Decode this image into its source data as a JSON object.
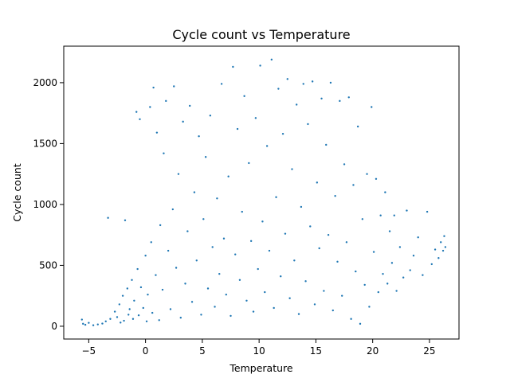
{
  "chart_data": {
    "type": "scatter",
    "title": "Cycle count vs Temperature",
    "xlabel": "Temperature",
    "ylabel": "Cycle count",
    "xlim": [
      -7.2,
      27.6
    ],
    "ylim": [
      -105,
      2300
    ],
    "xticks": [
      -5,
      0,
      5,
      10,
      15,
      20,
      25
    ],
    "yticks": [
      0,
      500,
      1000,
      1500,
      2000
    ],
    "grid": false,
    "series": [
      {
        "color": "#1f77b4",
        "marker_size": 1.2,
        "points": [
          [
            -5.6,
            55
          ],
          [
            -5.5,
            20
          ],
          [
            -5.3,
            12
          ],
          [
            -5.0,
            28
          ],
          [
            -4.6,
            8
          ],
          [
            -4.2,
            15
          ],
          [
            -3.8,
            22
          ],
          [
            -3.5,
            40
          ],
          [
            -3.3,
            890
          ],
          [
            -3.1,
            60
          ],
          [
            -2.7,
            120
          ],
          [
            -2.5,
            75
          ],
          [
            -2.3,
            180
          ],
          [
            -2.2,
            30
          ],
          [
            -2.0,
            250
          ],
          [
            -1.9,
            45
          ],
          [
            -1.8,
            870
          ],
          [
            -1.6,
            310
          ],
          [
            -1.5,
            95
          ],
          [
            -1.4,
            140
          ],
          [
            -1.2,
            380
          ],
          [
            -1.1,
            60
          ],
          [
            -1.0,
            210
          ],
          [
            -0.8,
            1760
          ],
          [
            -0.7,
            470
          ],
          [
            -0.6,
            90
          ],
          [
            -0.5,
            1700
          ],
          [
            -0.4,
            320
          ],
          [
            -0.2,
            150
          ],
          [
            0.0,
            580
          ],
          [
            0.1,
            40
          ],
          [
            0.2,
            260
          ],
          [
            0.4,
            1800
          ],
          [
            0.5,
            690
          ],
          [
            0.6,
            110
          ],
          [
            0.7,
            1960
          ],
          [
            0.9,
            420
          ],
          [
            1.0,
            1590
          ],
          [
            1.2,
            50
          ],
          [
            1.3,
            830
          ],
          [
            1.5,
            300
          ],
          [
            1.6,
            1420
          ],
          [
            1.8,
            1850
          ],
          [
            2.0,
            620
          ],
          [
            2.2,
            140
          ],
          [
            2.4,
            960
          ],
          [
            2.5,
            1970
          ],
          [
            2.7,
            480
          ],
          [
            2.9,
            1250
          ],
          [
            3.1,
            70
          ],
          [
            3.3,
            1680
          ],
          [
            3.5,
            350
          ],
          [
            3.7,
            780
          ],
          [
            3.9,
            1810
          ],
          [
            4.1,
            200
          ],
          [
            4.3,
            1100
          ],
          [
            4.5,
            540
          ],
          [
            4.7,
            1560
          ],
          [
            4.9,
            95
          ],
          [
            5.1,
            880
          ],
          [
            5.3,
            1390
          ],
          [
            5.5,
            310
          ],
          [
            5.7,
            1730
          ],
          [
            5.9,
            650
          ],
          [
            6.1,
            160
          ],
          [
            6.3,
            1050
          ],
          [
            6.5,
            430
          ],
          [
            6.7,
            1990
          ],
          [
            6.9,
            720
          ],
          [
            7.1,
            260
          ],
          [
            7.3,
            1230
          ],
          [
            7.5,
            85
          ],
          [
            7.7,
            2130
          ],
          [
            7.9,
            590
          ],
          [
            8.1,
            1620
          ],
          [
            8.3,
            380
          ],
          [
            8.5,
            940
          ],
          [
            8.7,
            1890
          ],
          [
            8.9,
            210
          ],
          [
            9.1,
            1340
          ],
          [
            9.3,
            700
          ],
          [
            9.5,
            120
          ],
          [
            9.7,
            1710
          ],
          [
            9.9,
            470
          ],
          [
            10.1,
            2140
          ],
          [
            10.3,
            860
          ],
          [
            10.5,
            280
          ],
          [
            10.7,
            1480
          ],
          [
            10.9,
            620
          ],
          [
            11.1,
            2190
          ],
          [
            11.3,
            150
          ],
          [
            11.5,
            1060
          ],
          [
            11.7,
            1950
          ],
          [
            11.9,
            410
          ],
          [
            12.1,
            1580
          ],
          [
            12.3,
            760
          ],
          [
            12.5,
            2030
          ],
          [
            12.7,
            230
          ],
          [
            12.9,
            1290
          ],
          [
            13.1,
            540
          ],
          [
            13.3,
            1820
          ],
          [
            13.5,
            100
          ],
          [
            13.7,
            980
          ],
          [
            13.9,
            1990
          ],
          [
            14.1,
            370
          ],
          [
            14.3,
            1660
          ],
          [
            14.5,
            820
          ],
          [
            14.7,
            2010
          ],
          [
            14.9,
            180
          ],
          [
            15.1,
            1180
          ],
          [
            15.3,
            640
          ],
          [
            15.5,
            1870
          ],
          [
            15.7,
            290
          ],
          [
            15.9,
            1490
          ],
          [
            16.1,
            750
          ],
          [
            16.3,
            2000
          ],
          [
            16.5,
            130
          ],
          [
            16.7,
            1070
          ],
          [
            16.9,
            530
          ],
          [
            17.1,
            1850
          ],
          [
            17.3,
            250
          ],
          [
            17.5,
            1330
          ],
          [
            17.7,
            690
          ],
          [
            17.9,
            1880
          ],
          [
            18.1,
            60
          ],
          [
            18.3,
            1160
          ],
          [
            18.5,
            450
          ],
          [
            18.7,
            1640
          ],
          [
            18.9,
            20
          ],
          [
            19.1,
            880
          ],
          [
            19.3,
            340
          ],
          [
            19.5,
            1250
          ],
          [
            19.7,
            160
          ],
          [
            19.9,
            1800
          ],
          [
            20.1,
            610
          ],
          [
            20.3,
            1210
          ],
          [
            20.5,
            280
          ],
          [
            20.7,
            910
          ],
          [
            20.9,
            430
          ],
          [
            21.1,
            1100
          ],
          [
            21.3,
            350
          ],
          [
            21.5,
            780
          ],
          [
            21.7,
            520
          ],
          [
            21.9,
            910
          ],
          [
            22.1,
            290
          ],
          [
            22.4,
            650
          ],
          [
            22.7,
            400
          ],
          [
            23.0,
            950
          ],
          [
            23.3,
            460
          ],
          [
            23.6,
            580
          ],
          [
            24.0,
            730
          ],
          [
            24.4,
            420
          ],
          [
            24.8,
            940
          ],
          [
            25.2,
            510
          ],
          [
            25.5,
            630
          ],
          [
            25.8,
            560
          ],
          [
            26.0,
            690
          ],
          [
            26.2,
            620
          ],
          [
            26.3,
            740
          ],
          [
            26.4,
            650
          ]
        ]
      }
    ]
  }
}
